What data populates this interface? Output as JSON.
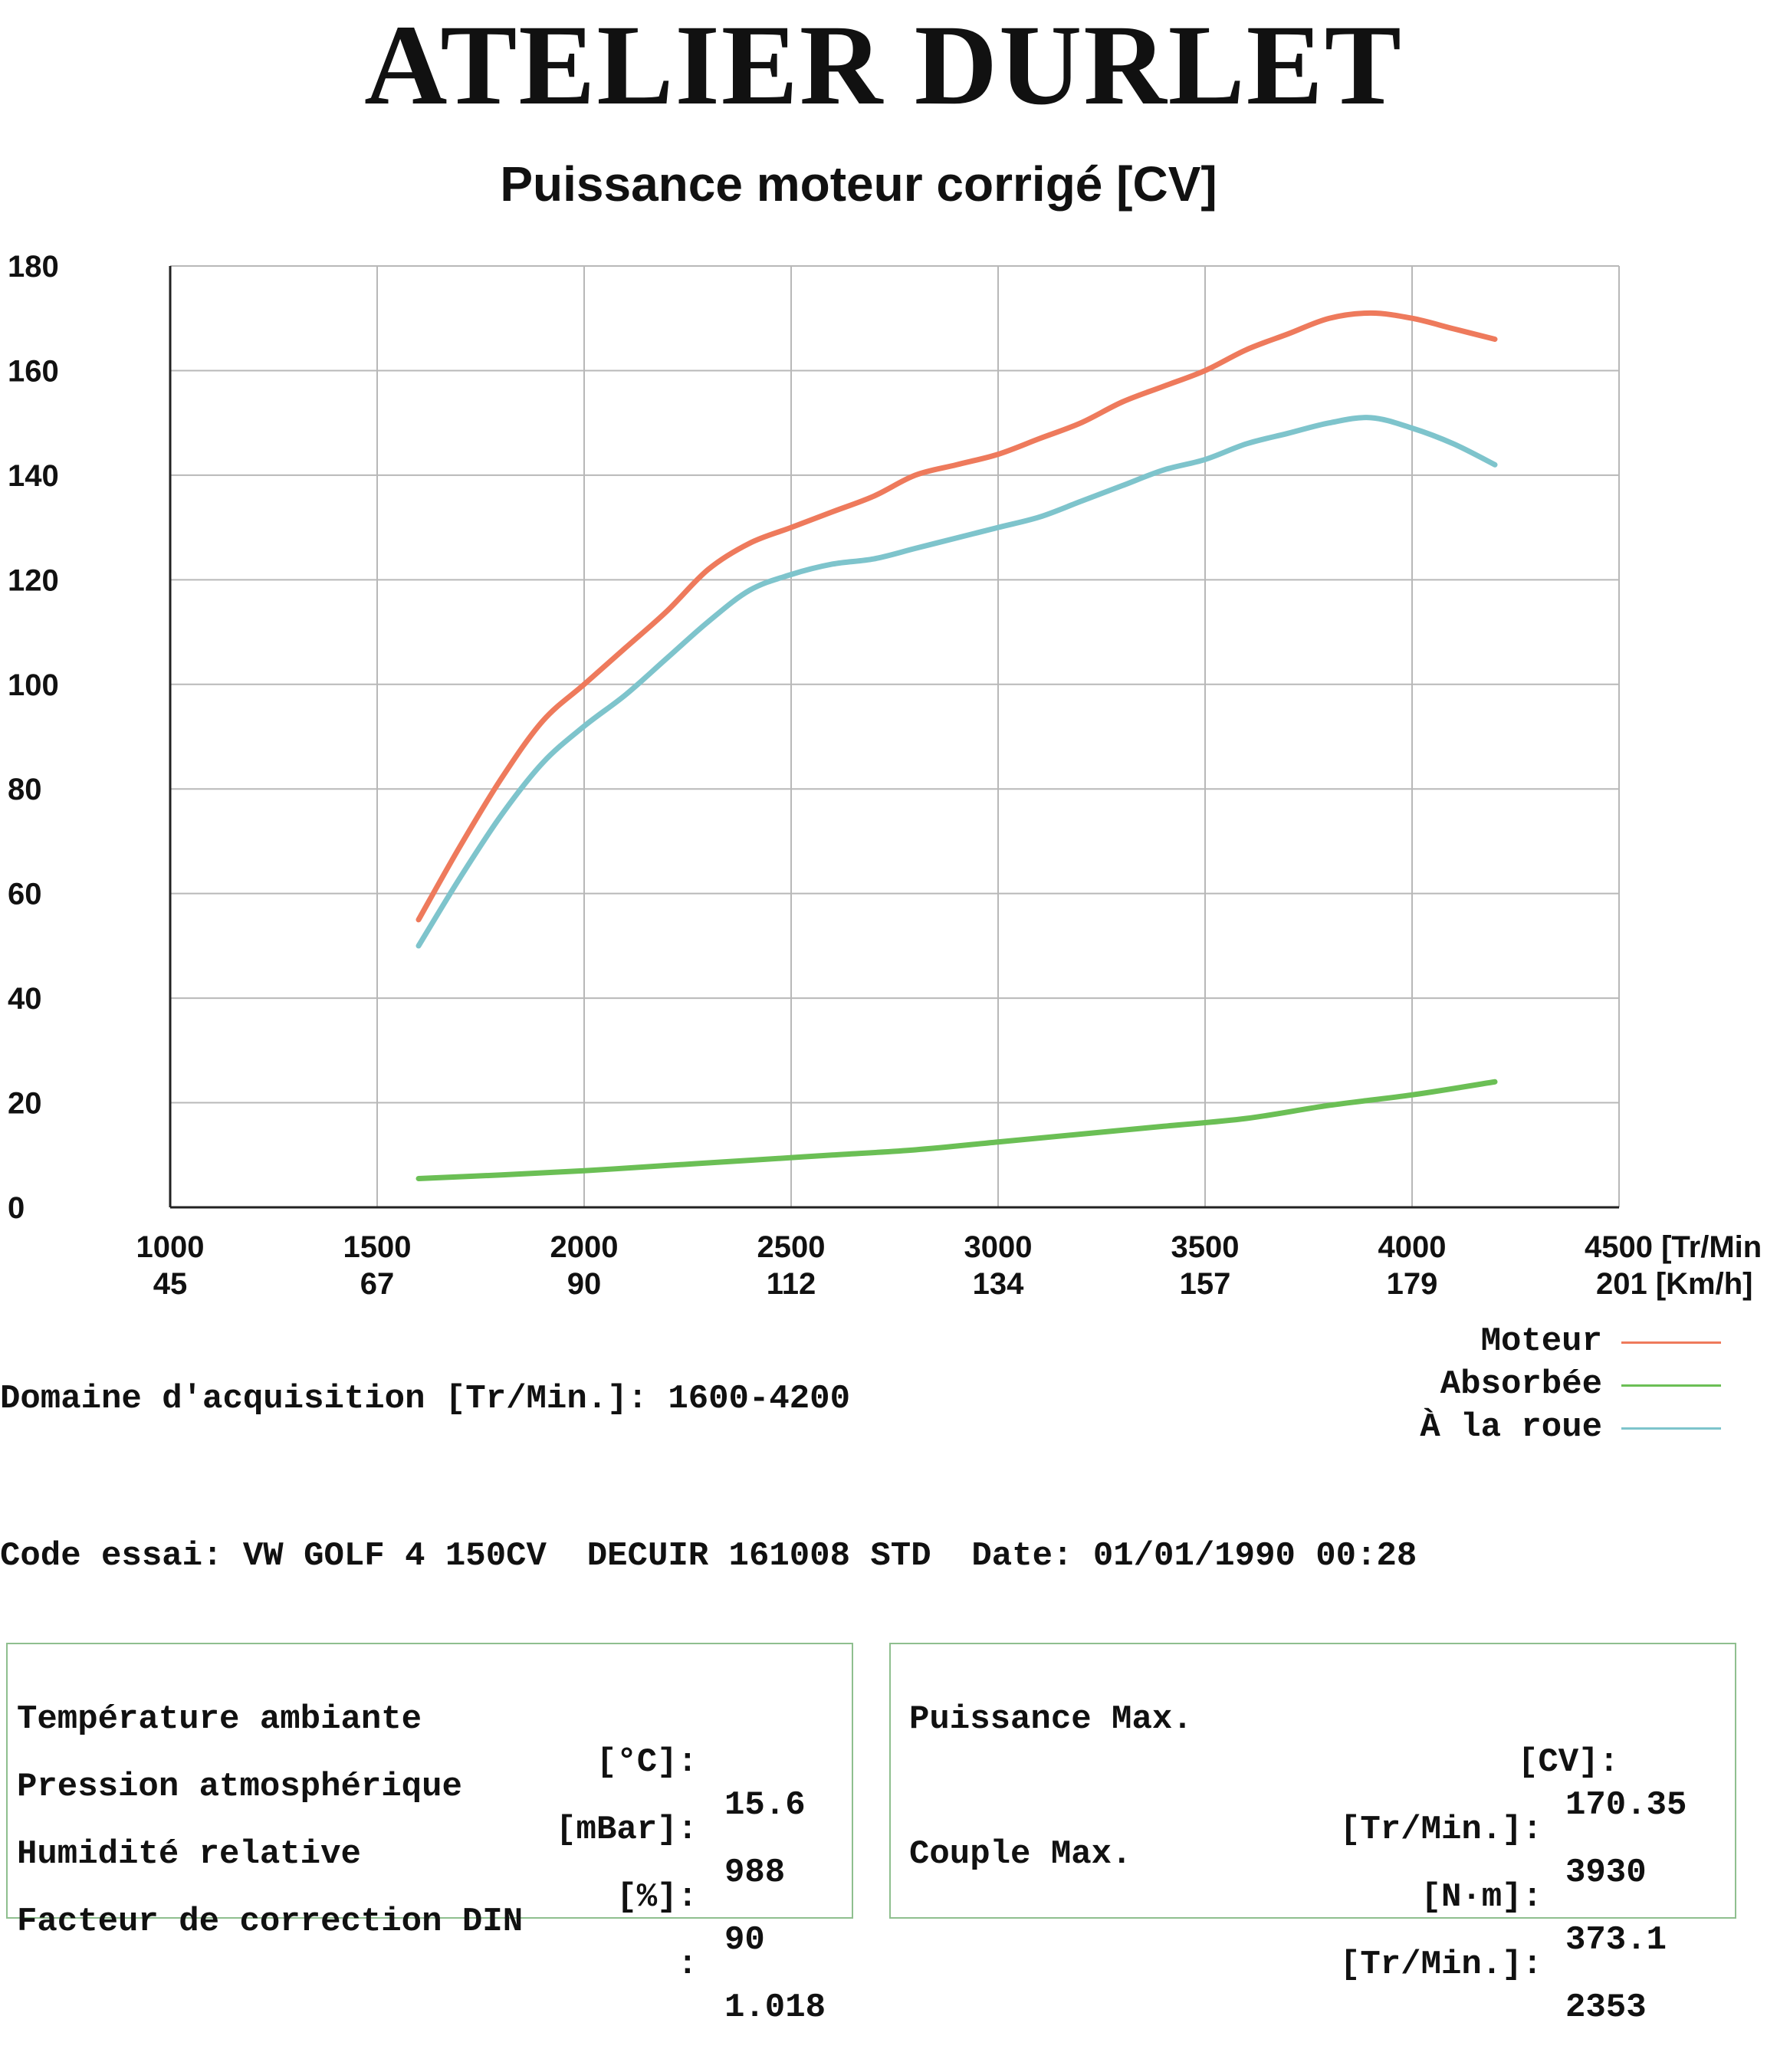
{
  "header": {
    "brand": "ATELIER DURLET"
  },
  "chart_data": {
    "type": "line",
    "title": "Puissance moteur corrigé [CV]",
    "x_unit_label": "[Tr/Min",
    "x2_unit_label": "[Km/h]",
    "xlim": [
      1000,
      4500
    ],
    "ylim": [
      0,
      180
    ],
    "x_ticks": [
      "1000",
      "1500",
      "2000",
      "2500",
      "3000",
      "3500",
      "4000",
      "4500"
    ],
    "x2_ticks": [
      "45",
      "67",
      "90",
      "112",
      "134",
      "157",
      "179",
      "201"
    ],
    "y_ticks": [
      "0",
      "20",
      "40",
      "60",
      "80",
      "100",
      "120",
      "140",
      "160",
      "180"
    ],
    "grid": true,
    "legend_position": "bottom-right",
    "series": [
      {
        "name": "Moteur",
        "color": "#ee7a5c",
        "points": [
          [
            1600,
            55
          ],
          [
            1700,
            69
          ],
          [
            1800,
            82
          ],
          [
            1900,
            93
          ],
          [
            2000,
            100
          ],
          [
            2100,
            107
          ],
          [
            2200,
            114
          ],
          [
            2300,
            122
          ],
          [
            2400,
            127
          ],
          [
            2500,
            130
          ],
          [
            2600,
            133
          ],
          [
            2700,
            136
          ],
          [
            2800,
            140
          ],
          [
            2900,
            142
          ],
          [
            3000,
            144
          ],
          [
            3100,
            147
          ],
          [
            3200,
            150
          ],
          [
            3300,
            154
          ],
          [
            3400,
            157
          ],
          [
            3500,
            160
          ],
          [
            3600,
            164
          ],
          [
            3700,
            167
          ],
          [
            3800,
            170
          ],
          [
            3900,
            171
          ],
          [
            4000,
            170
          ],
          [
            4100,
            168
          ],
          [
            4200,
            166
          ]
        ]
      },
      {
        "name": "Absorbée",
        "color": "#6bbf55",
        "points": [
          [
            1600,
            5.5
          ],
          [
            1800,
            6.2
          ],
          [
            2000,
            7
          ],
          [
            2200,
            8
          ],
          [
            2300,
            8.5
          ],
          [
            2400,
            9
          ],
          [
            2600,
            10
          ],
          [
            2800,
            11
          ],
          [
            3000,
            12.5
          ],
          [
            3200,
            14
          ],
          [
            3400,
            15.5
          ],
          [
            3600,
            17
          ],
          [
            3800,
            19.5
          ],
          [
            4000,
            21.5
          ],
          [
            4200,
            24
          ]
        ]
      },
      {
        "name": "À la roue",
        "color": "#7ec4cc",
        "points": [
          [
            1600,
            50
          ],
          [
            1700,
            63
          ],
          [
            1800,
            75
          ],
          [
            1900,
            85
          ],
          [
            2000,
            92
          ],
          [
            2100,
            98
          ],
          [
            2200,
            105
          ],
          [
            2300,
            112
          ],
          [
            2400,
            118
          ],
          [
            2500,
            121
          ],
          [
            2600,
            123
          ],
          [
            2700,
            124
          ],
          [
            2800,
            126
          ],
          [
            2900,
            128
          ],
          [
            3000,
            130
          ],
          [
            3100,
            132
          ],
          [
            3200,
            135
          ],
          [
            3300,
            138
          ],
          [
            3400,
            141
          ],
          [
            3500,
            143
          ],
          [
            3600,
            146
          ],
          [
            3700,
            148
          ],
          [
            3800,
            150
          ],
          [
            3900,
            151
          ],
          [
            4000,
            149
          ],
          [
            4100,
            146
          ],
          [
            4200,
            142
          ]
        ]
      }
    ]
  },
  "acquisition": {
    "text": "Domaine d'acquisition [Tr/Min.]: 1600-4200"
  },
  "test": {
    "text": "Code essai: VW GOLF 4 150CV  DECUIR 161008 STD  Date: 01/01/1990 00:28"
  },
  "conditions": [
    {
      "label": "Température ambiante",
      "unit": "[°C]:",
      "value": "15.6"
    },
    {
      "label": "Pression atmosphérique",
      "unit": "[mBar]:",
      "value": "988"
    },
    {
      "label": "Humidité relative",
      "unit": "[%]:",
      "value": "90"
    },
    {
      "label": "Facteur de correction DIN",
      "unit": ":",
      "value": "1.018"
    }
  ],
  "results": [
    {
      "label": "Puissance Max.",
      "unit": "[CV]:",
      "value": "170.35"
    },
    {
      "label": "",
      "unit": "[Tr/Min.]:",
      "value": "3930"
    },
    {
      "label": "Couple Max.",
      "unit": "[N·m]:",
      "value": "373.1"
    },
    {
      "label": "",
      "unit": "[Tr/Min.]:",
      "value": "2353"
    }
  ]
}
